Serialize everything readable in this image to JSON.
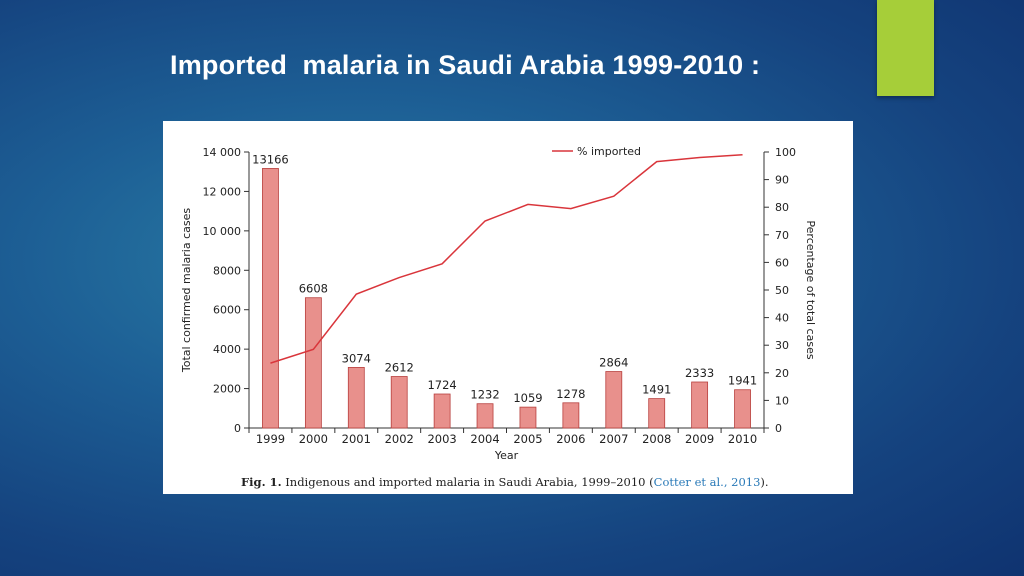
{
  "slide": {
    "title": "Imported  malaria in Saudi Arabia 1999-2010 :",
    "accent_color": "#a6ce39"
  },
  "figure": {
    "caption_label": "Fig. 1.",
    "caption_text": "Indigenous and imported malaria in Saudi Arabia, 1999–2010 (",
    "caption_citation": "Cotter et al., 2013",
    "caption_end": ")."
  },
  "chart_data": {
    "type": "bar",
    "categories": [
      "1999",
      "2000",
      "2001",
      "2002",
      "2003",
      "2004",
      "2005",
      "2006",
      "2007",
      "2008",
      "2009",
      "2010"
    ],
    "series": [
      {
        "name": "",
        "kind": "bar",
        "axis": "left",
        "values": [
          13166,
          6608,
          3074,
          2612,
          1724,
          1232,
          1059,
          1278,
          2864,
          1491,
          2333,
          1941
        ],
        "labels": [
          "13166",
          "6608",
          "3074",
          "2612",
          "1724",
          "1232",
          "1059",
          "1278",
          "2864",
          "1491",
          "2333",
          "1941"
        ]
      },
      {
        "name": "% imported",
        "kind": "line",
        "axis": "right",
        "values": [
          23.5,
          28.5,
          48.5,
          54.5,
          59.5,
          75,
          81,
          79.5,
          84,
          96.5,
          98,
          99
        ]
      }
    ],
    "xlabel": "Year",
    "ylabel": "Total confirmed malaria cases",
    "ylabel_right": "Percentage of total cases",
    "ylim": [
      0,
      14000
    ],
    "ylim_right": [
      0,
      100
    ],
    "yticks": [
      "0",
      "2000",
      "4000",
      "6000",
      "8000",
      "10 000",
      "12 000",
      "14 000"
    ],
    "yticks_right": [
      "0",
      "10",
      "20",
      "30",
      "40",
      "50",
      "60",
      "70",
      "80",
      "90",
      "100"
    ],
    "legend_position": "top-right",
    "bar_color": "#e8908c",
    "bar_edge": "#b8403e",
    "line_color": "#d9353b",
    "grid": false
  }
}
